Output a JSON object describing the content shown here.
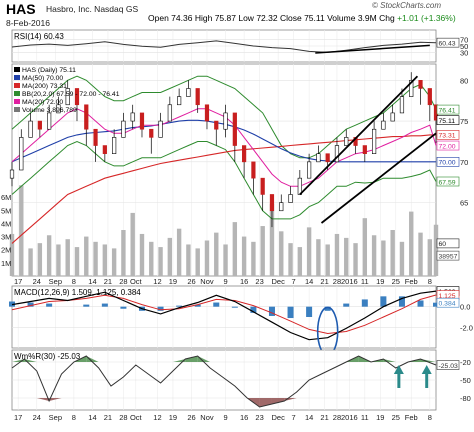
{
  "header": {
    "ticker": "HAS",
    "company": "Hasbro, Inc.  Nasdaq GS",
    "date": "8-Feb-2016",
    "open_label": "Open",
    "open": "74.36",
    "high_label": "High",
    "high": "75.87",
    "low_label": "Low",
    "low": "72.32",
    "close_label": "Close",
    "close": "75.11",
    "volume_label": "Volume",
    "volume": "3.9M",
    "chg_label": "Chg",
    "chg": "+1.01 (+1.36%)",
    "credit": "© StockCharts.com"
  },
  "colors": {
    "price": "#000000",
    "ma50": "#1f3fa8",
    "ma200": "#d62728",
    "bb": "#2e8b2e",
    "ma20": "#e01fa0",
    "macd": "#000000",
    "signal": "#d62728",
    "hist": "#3a7fc0",
    "volume": "#b5b5b5",
    "rsi": "#333333",
    "wmr": "#333333",
    "fill_green": "#4f8f4f",
    "fill_red": "#8f4f4f",
    "annot": "#000000",
    "ellipse": "#1e5bb0",
    "arrow": "#2a8a8a"
  },
  "chart_data": [
    {
      "type": "line",
      "panel": "RSI",
      "label": "RSI(14) 60.43",
      "ylim": [
        0,
        100
      ],
      "ticks": [
        {
          "v": 70,
          "t": "70"
        },
        {
          "v": 50,
          "t": "50"
        },
        {
          "v": 30,
          "t": "30"
        }
      ],
      "last_value_tag": "60.43",
      "x": [
        0,
        12,
        24,
        36,
        48,
        60,
        72,
        84,
        96,
        108,
        120,
        132,
        144,
        156,
        168,
        180,
        192,
        204,
        216,
        228,
        240,
        252,
        264,
        274
      ],
      "values": [
        47,
        53,
        56,
        52,
        57,
        63,
        55,
        49,
        46,
        55,
        60,
        66,
        58,
        50,
        45,
        42,
        33,
        30,
        37,
        45,
        52,
        56,
        62,
        60.43
      ]
    },
    {
      "type": "candlestick",
      "panel": "Price",
      "legend": [
        "HAS (Daily) 75.11",
        "MA(50) 70.00",
        "MA(200) 73.31",
        "BB(20,2.0) 67.59 - 72.00 - 76.41",
        "MA(20) 72.00",
        "Volume 3,896,789"
      ],
      "ylim": [
        56,
        82
      ],
      "right_axis_tags": [
        {
          "v": 76.41,
          "t": "76.41"
        },
        {
          "v": 75.11,
          "t": "75.11"
        },
        {
          "v": 73.31,
          "t": "73.31"
        },
        {
          "v": 72,
          "t": "72.00"
        },
        {
          "v": 70,
          "t": "70.00"
        },
        {
          "v": 67.59,
          "t": "67.59"
        },
        {
          "v": 60,
          "t": "60"
        },
        {
          "v": 58.5,
          "t": "38957"
        }
      ],
      "ticks": [
        {
          "v": 80,
          "t": "80"
        },
        {
          "v": 75,
          "t": "75"
        },
        {
          "v": 70,
          "t": "70"
        },
        {
          "v": 65,
          "t": "65"
        }
      ],
      "x": [
        0,
        6,
        12,
        18,
        24,
        30,
        36,
        42,
        48,
        54,
        60,
        66,
        72,
        78,
        84,
        90,
        96,
        102,
        108,
        114,
        120,
        126,
        132,
        138,
        144,
        150,
        156,
        162,
        168,
        174,
        180,
        186,
        192,
        198,
        204,
        210,
        216,
        222,
        228,
        234,
        240,
        246,
        252,
        258,
        264,
        270,
        274
      ],
      "close": [
        69,
        73,
        75,
        74,
        76,
        77,
        79,
        77,
        74,
        72,
        71,
        73,
        75,
        76,
        74,
        73,
        75,
        77,
        78,
        79,
        77,
        75,
        74,
        76,
        72,
        70,
        68,
        66,
        64,
        65,
        66,
        68,
        70,
        71,
        70,
        72,
        73,
        72,
        71,
        74,
        75,
        76,
        78,
        80,
        79,
        77,
        75.11
      ],
      "high": [
        70,
        74,
        76,
        75,
        77,
        78,
        80,
        78,
        75,
        73,
        72,
        74,
        76,
        77,
        75,
        74,
        76,
        78,
        79,
        80,
        78,
        76,
        75,
        77,
        73,
        71,
        69,
        67,
        65,
        66,
        67,
        69,
        71,
        72,
        71,
        73,
        74,
        73,
        72,
        75,
        76,
        77,
        79,
        81,
        80,
        78,
        75.87
      ],
      "low": [
        67,
        71,
        73,
        73,
        74,
        76,
        77,
        75,
        72,
        70,
        70,
        72,
        73,
        74,
        73,
        71,
        74,
        76,
        77,
        78,
        76,
        74,
        72,
        73,
        70,
        68,
        66,
        64,
        62,
        64,
        65,
        67,
        69,
        70,
        69,
        71,
        72,
        71,
        70,
        72,
        74,
        75,
        76,
        78,
        77,
        75,
        72.32
      ],
      "ma50": [
        70,
        70.5,
        71,
        71.5,
        72,
        72.5,
        73,
        73.3,
        73.5,
        73.6,
        73.7,
        73.8,
        74,
        74.2,
        74.3,
        74.4,
        74.6,
        74.8,
        75,
        75.1,
        75.1,
        75,
        74.8,
        74.6,
        74.3,
        73.9,
        73.4,
        72.8,
        72.2,
        71.6,
        71.1,
        70.7,
        70.4,
        70.2,
        70.1,
        70,
        70,
        70,
        70,
        70,
        70,
        70,
        70,
        70,
        70,
        70,
        70
      ],
      "ma200": [
        60,
        61,
        62,
        63,
        64,
        65,
        66,
        66.5,
        67,
        67.5,
        68,
        68.3,
        68.6,
        68.9,
        69.2,
        69.5,
        69.8,
        70,
        70.2,
        70.4,
        70.6,
        70.8,
        71,
        71.2,
        71.4,
        71.5,
        71.6,
        71.7,
        71.8,
        71.9,
        72,
        72.1,
        72.2,
        72.3,
        72.4,
        72.5,
        72.6,
        72.7,
        72.8,
        72.9,
        73,
        73.1,
        73.1,
        73.2,
        73.2,
        73.3,
        73.31
      ],
      "ma20": [
        70,
        71,
        72,
        73,
        74,
        75,
        76,
        76.5,
        76,
        75,
        74,
        73.5,
        73.5,
        74,
        74.5,
        74.5,
        74.5,
        75,
        75.5,
        76,
        76.5,
        76.5,
        76,
        75.5,
        74.5,
        73,
        71.5,
        70,
        68.5,
        67.5,
        67,
        67,
        67.5,
        68,
        69,
        70,
        70.5,
        71,
        71.2,
        71.5,
        72,
        72.5,
        73,
        73.6,
        74,
        74.5,
        72
      ],
      "bb_upper": [
        74,
        75,
        76,
        77,
        78,
        79,
        80,
        80.5,
        80,
        79,
        78,
        77.5,
        77.5,
        78,
        78.5,
        78.5,
        78.5,
        79,
        79.5,
        80,
        80.5,
        80.5,
        80,
        79.5,
        79,
        78,
        77,
        76,
        74,
        72,
        71,
        70.5,
        70.5,
        71,
        72,
        73,
        74,
        74.5,
        75,
        75.5,
        76,
        77,
        78,
        79,
        79.5,
        78,
        76.41
      ],
      "bb_lower": [
        66,
        67,
        68,
        69,
        70,
        71,
        72,
        72.5,
        72,
        71,
        70,
        69.5,
        69.5,
        70,
        70.5,
        70.5,
        70.5,
        71,
        71.5,
        72,
        72.5,
        72.5,
        72,
        71.5,
        70,
        68,
        66,
        64,
        63,
        63,
        63,
        63.5,
        64.5,
        65,
        66,
        67,
        67,
        67.5,
        67.4,
        67.5,
        68,
        68,
        68,
        68.2,
        68.5,
        69,
        67.59
      ],
      "volume": [
        3.2,
        6.9,
        2.1,
        2.5,
        3.1,
        2.4,
        2.8,
        2.2,
        3,
        2.6,
        2.4,
        2.1,
        3.5,
        4.8,
        3.2,
        2.6,
        2.2,
        2.9,
        3.6,
        2.4,
        2.1,
        2.7,
        3.3,
        2.4,
        4.1,
        3,
        2.6,
        3.8,
        5.5,
        3.4,
        2.5,
        2.2,
        3.7,
        2.8,
        2.4,
        3.2,
        2.9,
        2.5,
        4.4,
        3.1,
        2.7,
        3.5,
        2.6,
        4.9,
        3.3,
        2.8,
        3.9
      ],
      "vol_ticks": [
        {
          "v": 6,
          "t": "6M"
        },
        {
          "v": 5,
          "t": "5M"
        },
        {
          "v": 4,
          "t": "4M"
        },
        {
          "v": 3,
          "t": "3M"
        },
        {
          "v": 2,
          "t": "2M"
        },
        {
          "v": 1,
          "t": "1M"
        }
      ]
    },
    {
      "type": "line",
      "panel": "MACD",
      "label": "MACD(12,26,9) 1.509, 1.125, 0.384",
      "ylim": [
        -4,
        2
      ],
      "ticks": [
        {
          "v": 0,
          "t": "0.0"
        },
        {
          "v": -2,
          "t": "-2.0"
        }
      ],
      "right_axis_tags": [
        {
          "v": 1.509,
          "t": "1.509"
        },
        {
          "v": 1.125,
          "t": "1.125"
        },
        {
          "v": 0.384,
          "t": "0.384"
        }
      ],
      "x": [
        0,
        12,
        24,
        36,
        48,
        60,
        72,
        84,
        96,
        108,
        120,
        132,
        144,
        156,
        168,
        180,
        192,
        204,
        216,
        228,
        240,
        252,
        264,
        274
      ],
      "macd": [
        0.2,
        0.5,
        0.8,
        0.6,
        1,
        1.4,
        0.6,
        -0.2,
        -0.7,
        -0.1,
        0.4,
        1.1,
        0.5,
        -0.5,
        -1.5,
        -2.5,
        -3.2,
        -3,
        -2.1,
        -1.1,
        0,
        0.8,
        1.3,
        1.509
      ],
      "signal": [
        -0.3,
        0.1,
        0.5,
        0.6,
        0.8,
        1.1,
        0.8,
        0.2,
        -0.3,
        -0.2,
        0.2,
        0.7,
        0.6,
        0.1,
        -0.6,
        -1.4,
        -2.2,
        -2.6,
        -2.4,
        -1.8,
        -1,
        -0.2,
        0.7,
        1.125
      ],
      "hist": [
        0.5,
        0.4,
        0.3,
        0,
        0.2,
        0.3,
        -0.2,
        -0.4,
        -0.4,
        0.1,
        0.2,
        0.4,
        -0.1,
        -0.6,
        -0.9,
        -1.1,
        -1,
        -0.4,
        0.3,
        0.7,
        1,
        1,
        0.6,
        0.384
      ]
    },
    {
      "type": "line",
      "panel": "Williams %R",
      "label": "Wm%R(30) -25.03",
      "ylim": [
        -100,
        0
      ],
      "ticks": [
        {
          "v": -20,
          "t": "-20"
        },
        {
          "v": -50,
          "t": "-50"
        },
        {
          "v": -80,
          "t": "-80"
        }
      ],
      "last_value_tag": "-25.03",
      "x": [
        0,
        8,
        16,
        24,
        32,
        40,
        48,
        56,
        64,
        72,
        80,
        88,
        96,
        104,
        112,
        120,
        128,
        136,
        144,
        152,
        160,
        168,
        176,
        184,
        192,
        200,
        208,
        216,
        224,
        232,
        240,
        248,
        256,
        264,
        274
      ],
      "values": [
        -30,
        -15,
        -35,
        -85,
        -40,
        -20,
        -10,
        -30,
        -60,
        -45,
        -25,
        -40,
        -55,
        -35,
        -15,
        -10,
        -30,
        -45,
        -60,
        -80,
        -95,
        -90,
        -85,
        -70,
        -50,
        -40,
        -30,
        -20,
        -10,
        -20,
        -15,
        -30,
        -20,
        -15,
        -25.03
      ]
    }
  ],
  "x_axis": {
    "labels": [
      {
        "x": 4,
        "t": "17"
      },
      {
        "x": 16,
        "t": "24"
      },
      {
        "x": 28,
        "t": "Sep"
      },
      {
        "x": 40,
        "t": "8"
      },
      {
        "x": 52,
        "t": "14"
      },
      {
        "x": 62,
        "t": "21"
      },
      {
        "x": 72,
        "t": "28"
      },
      {
        "x": 80,
        "t": "Oct"
      },
      {
        "x": 94,
        "t": "12"
      },
      {
        "x": 104,
        "t": "19"
      },
      {
        "x": 116,
        "t": "26"
      },
      {
        "x": 126,
        "t": "Nov"
      },
      {
        "x": 138,
        "t": "9"
      },
      {
        "x": 150,
        "t": "16"
      },
      {
        "x": 160,
        "t": "23"
      },
      {
        "x": 172,
        "t": "Dec"
      },
      {
        "x": 182,
        "t": "7"
      },
      {
        "x": 192,
        "t": "14"
      },
      {
        "x": 202,
        "t": "21"
      },
      {
        "x": 210,
        "t": "28"
      },
      {
        "x": 218,
        "t": "2016"
      },
      {
        "x": 228,
        "t": "11"
      },
      {
        "x": 238,
        "t": "19"
      },
      {
        "x": 248,
        "t": "25"
      },
      {
        "x": 258,
        "t": "Feb"
      },
      {
        "x": 270,
        "t": "8"
      }
    ]
  }
}
